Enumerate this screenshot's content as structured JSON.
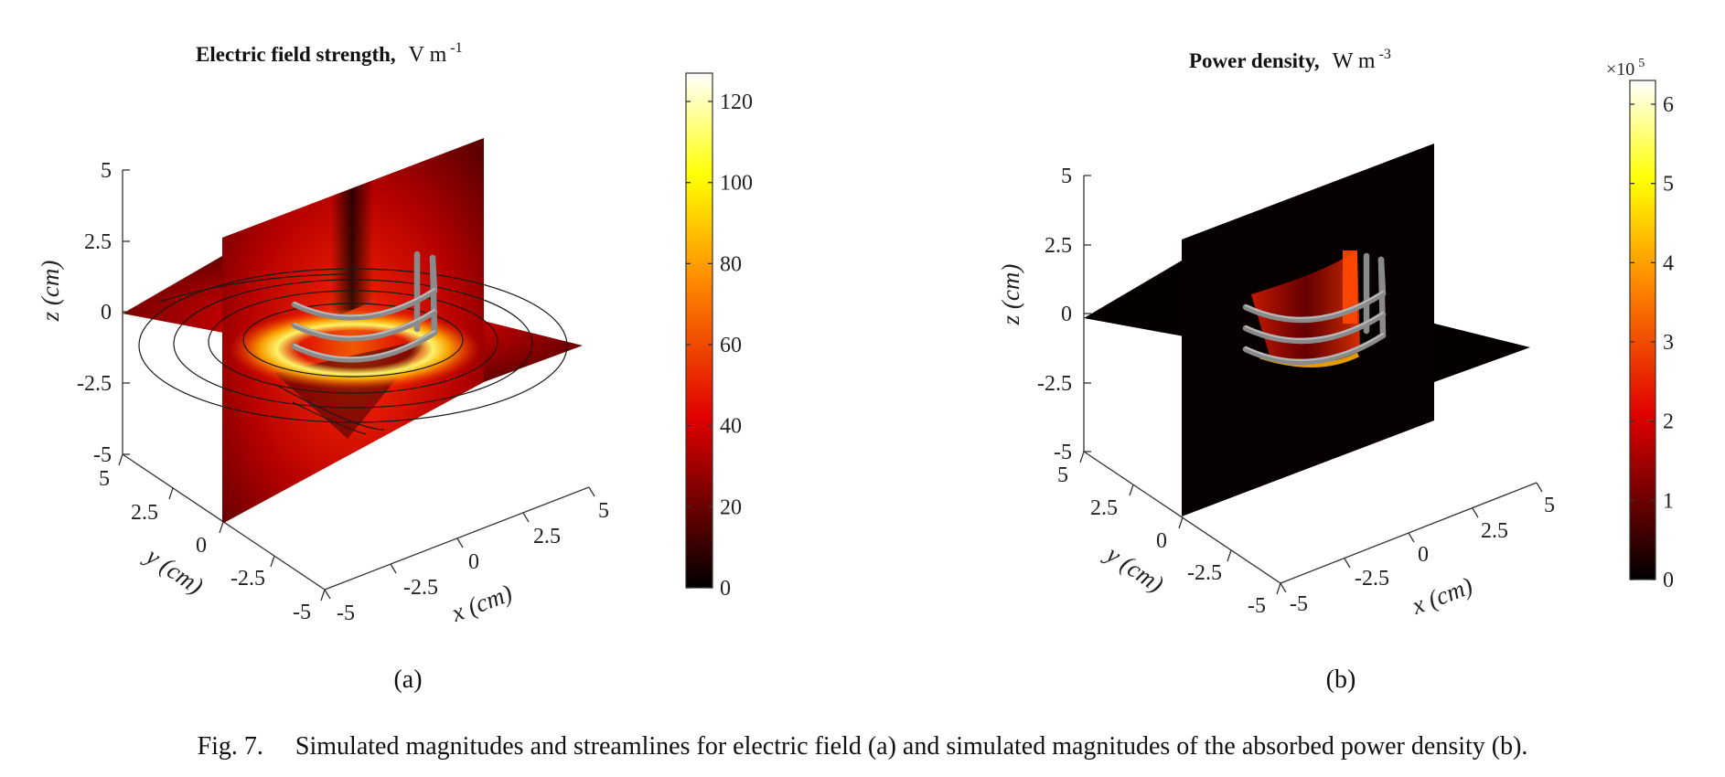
{
  "caption": "Fig. 7.  Simulated magnitudes and streamlines for electric field (a) and simulated magnitudes of the absorbed power density (b).",
  "panels": [
    {
      "label": "(a)",
      "title": "Electric field strength,",
      "title_unit": "V m",
      "title_unit_exp": "-1",
      "z_label": "z (cm)",
      "y_label": "y (cm)",
      "x_label": "x (cm)",
      "z_ticks": [
        "5",
        "2.5",
        "0",
        "-2.5",
        "-5"
      ],
      "y_ticks": [
        "5",
        "2.5",
        "0",
        "-2.5",
        "-5"
      ],
      "x_ticks": [
        "-5",
        "-2.5",
        "0",
        "2.5",
        "5"
      ],
      "colorbar": {
        "ticks": [
          "120",
          "100",
          "80",
          "60",
          "40",
          "20",
          "0"
        ],
        "min": 0,
        "max": 127,
        "multiplier": ""
      },
      "colormap": "hot"
    },
    {
      "label": "(b)",
      "title": "Power density,",
      "title_unit": "W m",
      "title_unit_exp": "-3",
      "z_label": "z (cm)",
      "y_label": "y (cm)",
      "x_label": "x (cm)",
      "z_ticks": [
        "5",
        "2.5",
        "0",
        "-2.5",
        "-5"
      ],
      "y_ticks": [
        "5",
        "2.5",
        "0",
        "-2.5",
        "-5"
      ],
      "x_ticks": [
        "-5",
        "-2.5",
        "0",
        "2.5",
        "5"
      ],
      "colorbar": {
        "ticks": [
          "6",
          "5",
          "4",
          "3",
          "2",
          "1",
          "0"
        ],
        "min": 0,
        "max": 6.3,
        "multiplier": "×10",
        "multiplier_exp": "5"
      },
      "colormap": "hot"
    }
  ],
  "colors": {
    "coil": "#8a8a8a",
    "streamline": "#1a1a1a",
    "background": "#ffffff"
  }
}
